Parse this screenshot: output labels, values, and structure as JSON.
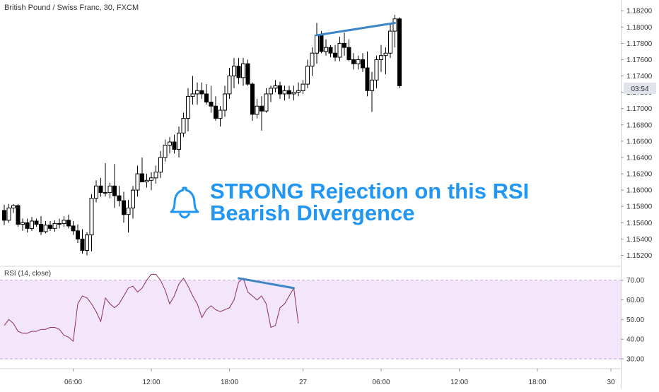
{
  "chart_title": "British Pound / Swiss Franc, 30, FXCM",
  "annotation": {
    "line1": "STRONG Rejection on this RSI",
    "line2": "Bearish Divergence",
    "icon": "bell-icon"
  },
  "current_time_label": "03:54",
  "colors": {
    "candle": "#000000",
    "trendline": "#3d85c6",
    "rsi_line": "#8e2d66",
    "rsi_band_fill": "#f3e6fb",
    "rsi_band_border": "#c8a3e0",
    "annotation_text": "#2196f3",
    "axis_text": "#333333"
  },
  "chart_data": [
    {
      "type": "candlestick",
      "ylim": [
        1.151,
        1.1828
      ],
      "y_ticks": [
        "1.18200",
        "1.18000",
        "1.17800",
        "1.17600",
        "1.17400",
        "1.17200",
        "1.17000",
        "1.16800",
        "1.16600",
        "1.16400",
        "1.16200",
        "1.16000",
        "1.15800",
        "1.15600",
        "1.15400",
        "1.15200"
      ],
      "y_tick_values": [
        1.182,
        1.18,
        1.178,
        1.176,
        1.174,
        1.172,
        1.17,
        1.168,
        1.166,
        1.164,
        1.162,
        1.16,
        1.158,
        1.156,
        1.154,
        1.152
      ],
      "x_ticks": [
        "06:00",
        "12:00",
        "18:00",
        "27",
        "06:00",
        "12:00",
        "18:00",
        "30"
      ],
      "x_tick_bars": [
        15,
        32,
        49,
        65,
        82,
        99,
        116,
        132
      ],
      "candles": [
        [
          1.1575,
          1.1582,
          1.1557,
          1.1563
        ],
        [
          1.1563,
          1.1583,
          1.156,
          1.1578
        ],
        [
          1.1578,
          1.1583,
          1.1572,
          1.1581
        ],
        [
          1.1581,
          1.1583,
          1.1555,
          1.1558
        ],
        [
          1.1558,
          1.1565,
          1.155,
          1.156
        ],
        [
          1.156,
          1.1565,
          1.1548,
          1.1553
        ],
        [
          1.1553,
          1.1567,
          1.155,
          1.1562
        ],
        [
          1.1562,
          1.1565,
          1.1555,
          1.1558
        ],
        [
          1.1558,
          1.1568,
          1.1545,
          1.1549
        ],
        [
          1.1549,
          1.1562,
          1.1547,
          1.1557
        ],
        [
          1.1557,
          1.1562,
          1.155,
          1.1553
        ],
        [
          1.1553,
          1.1563,
          1.1549,
          1.1559
        ],
        [
          1.1559,
          1.1565,
          1.1553,
          1.1559
        ],
        [
          1.1559,
          1.1568,
          1.1555,
          1.1563
        ],
        [
          1.1563,
          1.157,
          1.1553,
          1.1556
        ],
        [
          1.1556,
          1.1562,
          1.1545,
          1.155
        ],
        [
          1.155,
          1.1558,
          1.1535,
          1.154
        ],
        [
          1.154,
          1.1552,
          1.1522,
          1.1526
        ],
        [
          1.1526,
          1.1548,
          1.152,
          1.1545
        ],
        [
          1.1545,
          1.1595,
          1.1525,
          1.159
        ],
        [
          1.159,
          1.1612,
          1.1585,
          1.1605
        ],
        [
          1.1605,
          1.1615,
          1.1592,
          1.1597
        ],
        [
          1.1597,
          1.1633,
          1.1592,
          1.1597
        ],
        [
          1.1597,
          1.1609,
          1.159,
          1.1605
        ],
        [
          1.1605,
          1.1632,
          1.1578,
          1.1593
        ],
        [
          1.1593,
          1.1605,
          1.158,
          1.1587
        ],
        [
          1.1587,
          1.1598,
          1.156,
          1.157
        ],
        [
          1.157,
          1.1588,
          1.1548,
          1.1578
        ],
        [
          1.1578,
          1.1605,
          1.1565,
          1.16
        ],
        [
          1.16,
          1.163,
          1.1592,
          1.162
        ],
        [
          1.162,
          1.164,
          1.1612,
          1.161
        ],
        [
          1.161,
          1.162,
          1.1603,
          1.1612
        ],
        [
          1.1612,
          1.1622,
          1.16,
          1.1615
        ],
        [
          1.1615,
          1.163,
          1.1608,
          1.1622
        ],
        [
          1.1622,
          1.1648,
          1.1615,
          1.164
        ],
        [
          1.164,
          1.1662,
          1.1635,
          1.1655
        ],
        [
          1.1655,
          1.1665,
          1.1645,
          1.1659
        ],
        [
          1.1659,
          1.1668,
          1.1645,
          1.165
        ],
        [
          1.165,
          1.1678,
          1.164,
          1.167
        ],
        [
          1.167,
          1.1695,
          1.1665,
          1.1688
        ],
        [
          1.1688,
          1.1725,
          1.1672,
          1.1715
        ],
        [
          1.1715,
          1.174,
          1.1705,
          1.1718
        ],
        [
          1.1718,
          1.1732,
          1.1705,
          1.1722
        ],
        [
          1.1722,
          1.1732,
          1.1712,
          1.1718
        ],
        [
          1.1718,
          1.173,
          1.1705,
          1.1708
        ],
        [
          1.1708,
          1.1728,
          1.1695,
          1.1703
        ],
        [
          1.1703,
          1.1715,
          1.1685,
          1.1688
        ],
        [
          1.1688,
          1.1703,
          1.1678,
          1.1698
        ],
        [
          1.1698,
          1.1728,
          1.169,
          1.1718
        ],
        [
          1.1718,
          1.175,
          1.1712,
          1.174
        ],
        [
          1.174,
          1.1762,
          1.1725,
          1.1752
        ],
        [
          1.1752,
          1.1762,
          1.173,
          1.1738
        ],
        [
          1.1738,
          1.1762,
          1.1728,
          1.1755
        ],
        [
          1.1755,
          1.176,
          1.1728,
          1.173
        ],
        [
          1.173,
          1.1732,
          1.1685,
          1.1693
        ],
        [
          1.1693,
          1.1712,
          1.1688,
          1.1703
        ],
        [
          1.1703,
          1.1715,
          1.1673,
          1.1697
        ],
        [
          1.1697,
          1.1725,
          1.1695,
          1.1718
        ],
        [
          1.1718,
          1.1728,
          1.1708,
          1.1725
        ],
        [
          1.1725,
          1.1735,
          1.172,
          1.1728
        ],
        [
          1.1728,
          1.1733,
          1.1712,
          1.1718
        ],
        [
          1.1718,
          1.1728,
          1.171,
          1.1722
        ],
        [
          1.1722,
          1.1728,
          1.1712,
          1.1718
        ],
        [
          1.1718,
          1.1728,
          1.171,
          1.172
        ],
        [
          1.172,
          1.1732,
          1.1715,
          1.1722
        ],
        [
          1.1722,
          1.1735,
          1.1718,
          1.173
        ],
        [
          1.173,
          1.176,
          1.1725,
          1.1752
        ],
        [
          1.1752,
          1.1775,
          1.174,
          1.1768
        ],
        [
          1.1768,
          1.1805,
          1.1755,
          1.179
        ],
        [
          1.179,
          1.1795,
          1.1768,
          1.177
        ],
        [
          1.177,
          1.1785,
          1.1765,
          1.1775
        ],
        [
          1.1775,
          1.1778,
          1.1763,
          1.1768
        ],
        [
          1.1768,
          1.1778,
          1.1758,
          1.1763
        ],
        [
          1.1763,
          1.1788,
          1.1758,
          1.178
        ],
        [
          1.178,
          1.1793,
          1.1765,
          1.1775
        ],
        [
          1.1775,
          1.1785,
          1.1758,
          1.176
        ],
        [
          1.176,
          1.1768,
          1.1748,
          1.1755
        ],
        [
          1.1755,
          1.1765,
          1.1748,
          1.176
        ],
        [
          1.176,
          1.1768,
          1.1745,
          1.175
        ],
        [
          1.175,
          1.177,
          1.1715,
          1.1722
        ],
        [
          1.1722,
          1.1745,
          1.1696,
          1.1735
        ],
        [
          1.1735,
          1.1765,
          1.1725,
          1.176
        ],
        [
          1.176,
          1.1778,
          1.1745,
          1.1765
        ],
        [
          1.1765,
          1.1775,
          1.1742,
          1.1768
        ],
        [
          1.1768,
          1.1805,
          1.1762,
          1.1795
        ],
        [
          1.1795,
          1.1815,
          1.1775,
          1.181
        ],
        [
          1.181,
          1.1812,
          1.1725,
          1.1728
        ]
      ],
      "divergence_line": [
        [
          68,
          1.179
        ],
        [
          85,
          1.1805
        ]
      ]
    },
    {
      "type": "line",
      "title": "RSI (14, close)",
      "ylim": [
        25,
        76
      ],
      "y_ticks": [
        "70.00",
        "60.00",
        "50.00",
        "40.00",
        "30.00"
      ],
      "y_tick_values": [
        70,
        60,
        50,
        40,
        30
      ],
      "band": [
        30,
        70
      ],
      "values": [
        47,
        50,
        48,
        44,
        43,
        43,
        44,
        44,
        45,
        45,
        46,
        46,
        45,
        42,
        41,
        39,
        58,
        62,
        61,
        58,
        54,
        49,
        61,
        58,
        56,
        58,
        62,
        66,
        67,
        64,
        66,
        70,
        73,
        73,
        70,
        65,
        58,
        62,
        68,
        71,
        67,
        62,
        58,
        51,
        55,
        57,
        55,
        54,
        55,
        56,
        60,
        69,
        71,
        64,
        62,
        60,
        62,
        58,
        46,
        47,
        56,
        58,
        62,
        66,
        48
      ],
      "divergence_line": [
        [
          51,
          71
        ],
        [
          63,
          66
        ]
      ]
    }
  ]
}
